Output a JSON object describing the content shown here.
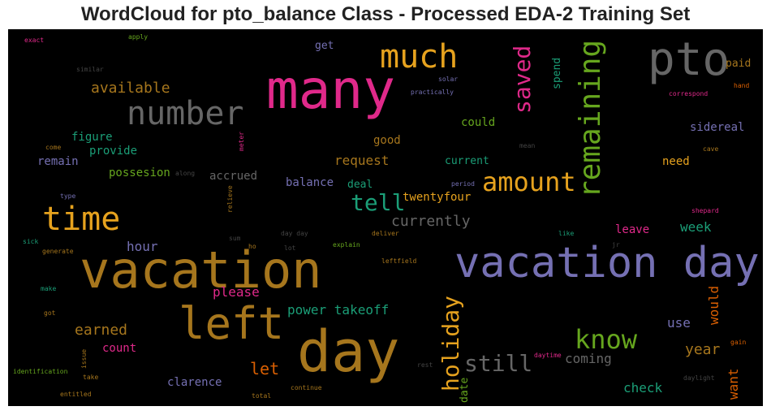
{
  "title": "WordCloud for pto_balance Class - Processed EDA-2 Training Set",
  "colors": {
    "background": "#000000",
    "orange": "#e6a21e",
    "pink": "#e0298a",
    "gray": "#666666",
    "purple": "#7570b3",
    "green": "#66a61e",
    "teal": "#1b9e77",
    "brown": "#a6761d",
    "rust": "#d95f02"
  },
  "words": [
    "vacation day",
    "day",
    "vacation",
    "many",
    "pto",
    "left",
    "time",
    "number",
    "much",
    "remaining",
    "amount",
    "know",
    "tell",
    "saved",
    "holiday",
    "still",
    "available",
    "currently",
    "request",
    "power takeoff",
    "earned",
    "please",
    "hour",
    "let",
    "year",
    "week",
    "check",
    "coming",
    "clarence",
    "count",
    "leave",
    "need",
    "would",
    "use",
    "want",
    "sidereal",
    "could",
    "good",
    "figure",
    "provide",
    "possesion",
    "remain",
    "accrued",
    "balance",
    "deal",
    "twentyfour",
    "current",
    "get",
    "paid",
    "spend",
    "date",
    "exact",
    "apply",
    "similar",
    "solar",
    "practically",
    "correspond",
    "hand",
    "come",
    "meter",
    "mean",
    "cave",
    "along",
    "period",
    "type",
    "relieve",
    "sum",
    "day day",
    "deliver",
    "shepard",
    "like",
    "sick",
    "generate",
    "ho",
    "lot",
    "explain",
    "jr",
    "leftfield",
    "make",
    "got",
    "issue",
    "gain",
    "identification",
    "take",
    "rest",
    "daytime",
    "daylight",
    "entitled",
    "total",
    "continue"
  ]
}
